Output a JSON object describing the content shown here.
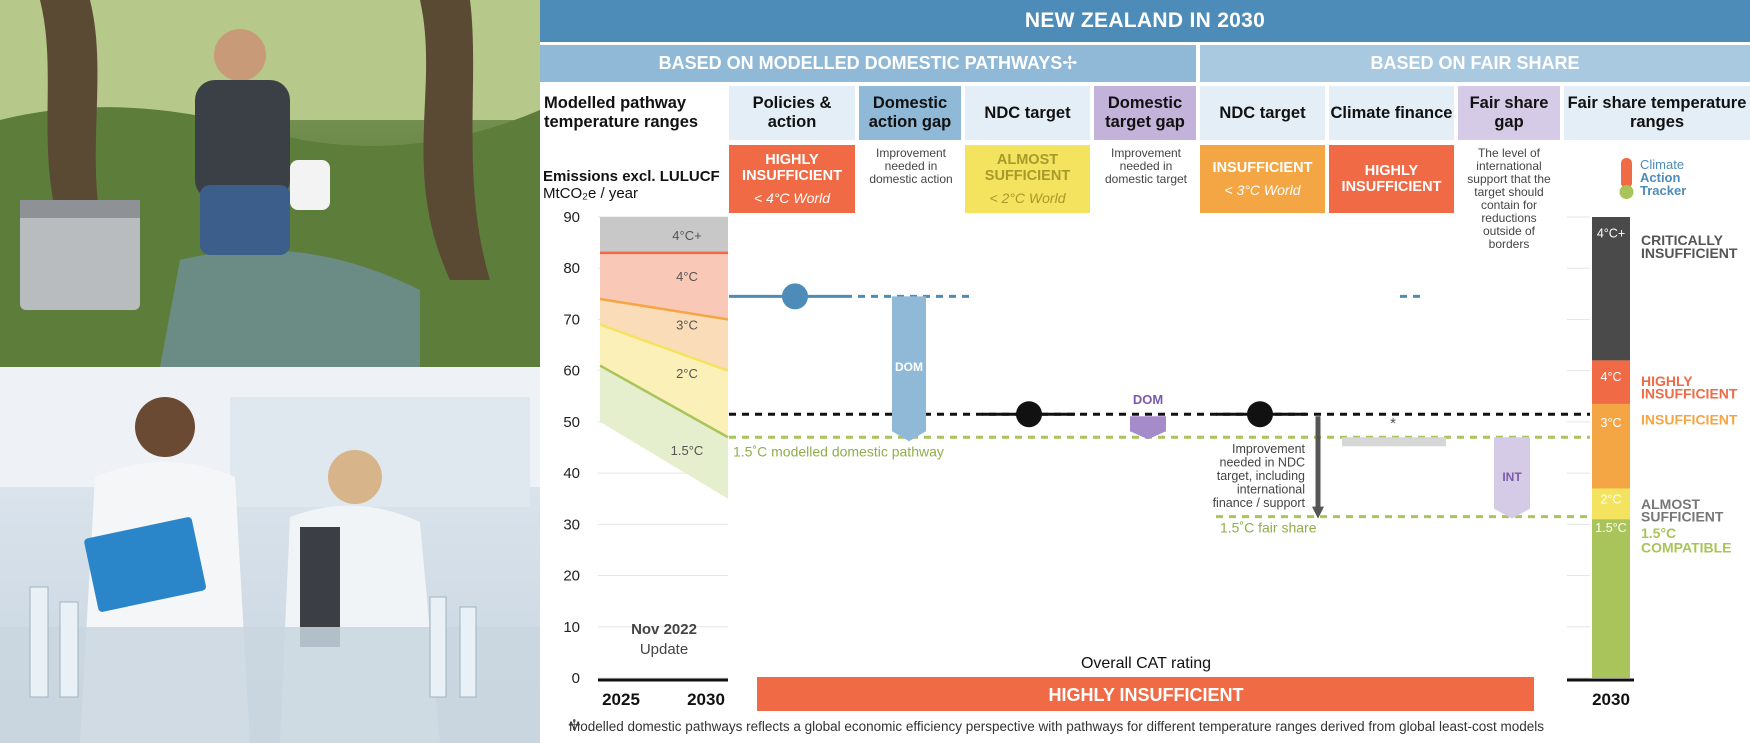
{
  "header": {
    "title": "NEW ZEALAND IN 2030",
    "sub_domestic": "BASED ON MODELLED DOMESTIC PATHWAYS✢",
    "sub_fair": "BASED ON FAIR SHARE"
  },
  "columns": {
    "modelled": "Modelled pathway temperature ranges",
    "policies": "Policies & action",
    "dom_gap": "Domestic action gap",
    "ndc_dom": "NDC target",
    "dom_target_gap": "Domestic target gap",
    "ndc_fair": "NDC target",
    "finance": "Climate finance",
    "fair_gap": "Fair share gap",
    "fair_ranges": "Fair share temperature ranges"
  },
  "ratings": {
    "policies": {
      "label": "HIGHLY INSUFFICIENT",
      "sub": "< 4°C World",
      "color": "#ef6a45"
    },
    "ndc_dom": {
      "label": "ALMOST SUFFICIENT",
      "sub": "< 2°C World",
      "color": "#f3e35f"
    },
    "ndc_fair": {
      "label": "INSUFFICIENT",
      "sub": "< 3°C World",
      "color": "#f4a644"
    },
    "finance": {
      "label": "HIGHLY INSUFFICIENT",
      "color": "#ef6a45"
    }
  },
  "notes": {
    "dom_gap": "Improvement needed in domestic action",
    "dom_target_gap": "Improvement needed in domestic target",
    "fair_gap": "The level of international support that the target should contain for reductions outside of borders"
  },
  "logo": {
    "line1": "Climate",
    "line2": "Action",
    "line3": "Tracker"
  },
  "icons": {
    "thermometer": "thermometer-icon",
    "footnote": "cross-icon"
  },
  "chart_data": {
    "type": "bar",
    "ylabel": "Emissions excl. LULUCF",
    "yunit": "MtCO₂e / year",
    "ylim": [
      0,
      90
    ],
    "yticks": [
      0,
      10,
      20,
      30,
      40,
      50,
      60,
      70,
      80,
      90
    ],
    "xlabels": {
      "start": "2025",
      "end": "2030",
      "fair": "2030"
    },
    "update_label": {
      "line1": "Nov 2022",
      "line2": "Update"
    },
    "modelled_ranges": {
      "labels": [
        "4°C+",
        "4°C",
        "3°C",
        "2°C",
        "1.5°C"
      ],
      "boundaries_2025": [
        90,
        83,
        74,
        69,
        61,
        50
      ],
      "boundaries_2030": [
        90,
        83,
        70,
        60,
        47,
        35
      ]
    },
    "policies_value": 74.5,
    "ndc_target_value": 51.5,
    "domestic_1_5_value": 47,
    "fair_share_1_5_value": 31.5,
    "gap_labels": {
      "dom": "DOM",
      "int": "INT",
      "asterisk": "*"
    },
    "pathway_labels": {
      "domestic": "1.5˚C modelled domestic pathway",
      "fair": "1.5˚C fair share",
      "improvement": "Improvement needed in NDC target, including international finance / support"
    },
    "fair_ranges": {
      "labels": [
        "4°C+",
        "4°C",
        "3°C",
        "2°C",
        "1.5°C"
      ],
      "boundaries": [
        90,
        62,
        53.5,
        37,
        31,
        0
      ],
      "colors": [
        "#4a4a4a",
        "#ef6a45",
        "#f4a644",
        "#f3e35f",
        "#a9c45a"
      ],
      "ratings": [
        "CRITICALLY INSUFFICIENT",
        "HIGHLY INSUFFICIENT",
        "INSUFFICIENT",
        "ALMOST SUFFICIENT",
        "1.5°C COMPATIBLE"
      ]
    },
    "overall": {
      "caption": "Overall CAT rating",
      "label": "HIGHLY INSUFFICIENT"
    }
  },
  "footnote": "Modelled domestic pathways reflects a global economic efficiency perspective with pathways for different temperature ranges derived from global least-cost models"
}
